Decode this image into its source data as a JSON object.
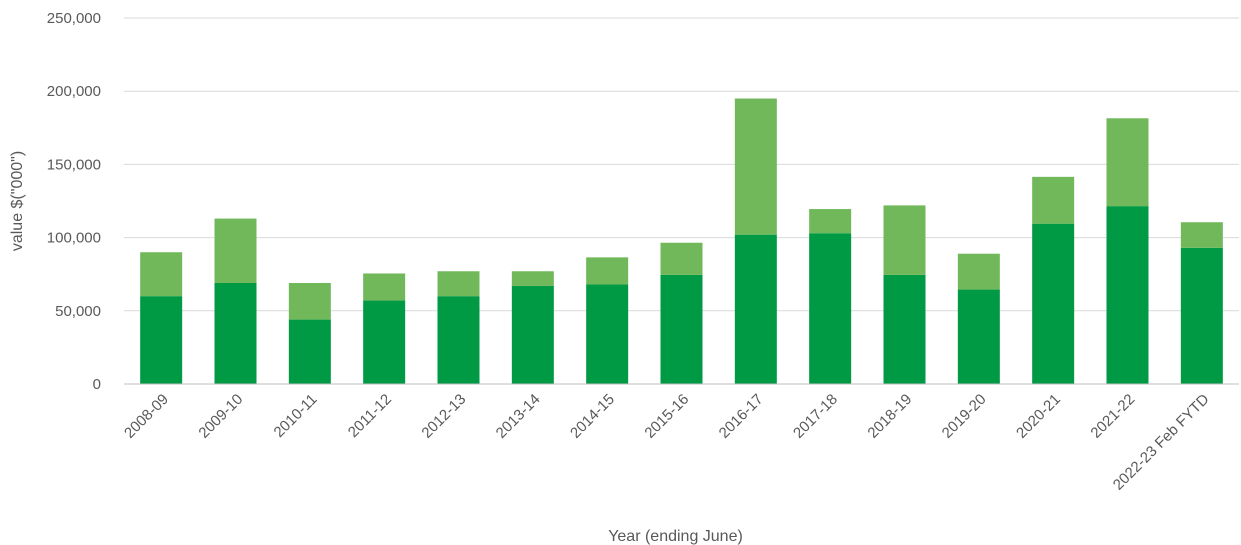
{
  "chart_data": {
    "type": "bar",
    "stacked": true,
    "categories": [
      "2008-09",
      "2009-10",
      "2010-11",
      "2011-12",
      "2012-13",
      "2013-14",
      "2014-15",
      "2015-16",
      "2016-17",
      "2017-18",
      "2018-19",
      "2019-20",
      "2020-21",
      "2021-22",
      "2022-23 Feb FYTD"
    ],
    "series": [
      {
        "color": "#009a44",
        "values": [
          60000,
          69000,
          44000,
          57000,
          60000,
          67000,
          68000,
          74500,
          102000,
          103000,
          74500,
          64500,
          109500,
          121500,
          93000
        ]
      },
      {
        "color": "#70b85a",
        "values": [
          30000,
          44000,
          25000,
          18500,
          17000,
          10000,
          18500,
          22000,
          93000,
          16500,
          47500,
          24500,
          32000,
          60000,
          17500
        ]
      }
    ],
    "title": "",
    "xlabel": "Year (ending June)",
    "ylabel": "value $(\"000\")",
    "ylim": [
      0,
      250000
    ],
    "yticks": [
      "0",
      "50,000",
      "100,000",
      "150,000",
      "200,000",
      "250,000"
    ],
    "grid": true,
    "legend": "none"
  }
}
